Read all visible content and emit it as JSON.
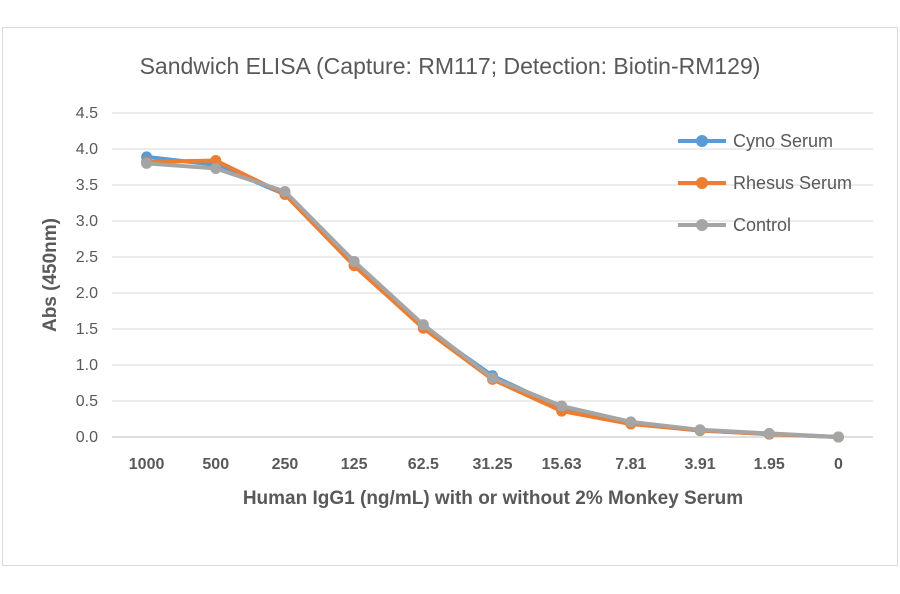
{
  "chart_data": {
    "type": "line",
    "title": "Sandwich ELISA (Capture:  RM117; Detection: Biotin-RM129)",
    "xlabel": "Human IgG1 (ng/mL) with or without 2% Monkey Serum",
    "ylabel": "Abs (450nm)",
    "ylim": [
      0,
      4.5
    ],
    "yticks": [
      "0.0",
      "0.5",
      "1.0",
      "1.5",
      "2.0",
      "2.5",
      "3.0",
      "3.5",
      "4.0",
      "4.5"
    ],
    "categories": [
      "1000",
      "500",
      "250",
      "125",
      "62.5",
      "31.25",
      "15.63",
      "7.81",
      "3.91",
      "1.95",
      "0"
    ],
    "grid": true,
    "legend_position": "top-right",
    "series": [
      {
        "name": "Cyno Serum",
        "color": "#5b9bd5",
        "values": [
          3.89,
          3.78,
          3.37,
          2.38,
          1.53,
          0.85,
          0.4,
          0.19,
          0.09,
          0.04,
          0.0
        ]
      },
      {
        "name": "Rhesus Serum",
        "color": "#ed7d31",
        "values": [
          3.82,
          3.84,
          3.37,
          2.38,
          1.51,
          0.8,
          0.36,
          0.18,
          0.09,
          0.04,
          0.0
        ]
      },
      {
        "name": "Control",
        "color": "#a5a5a5",
        "values": [
          3.8,
          3.73,
          3.41,
          2.44,
          1.56,
          0.82,
          0.43,
          0.21,
          0.1,
          0.05,
          0.0
        ]
      }
    ]
  }
}
